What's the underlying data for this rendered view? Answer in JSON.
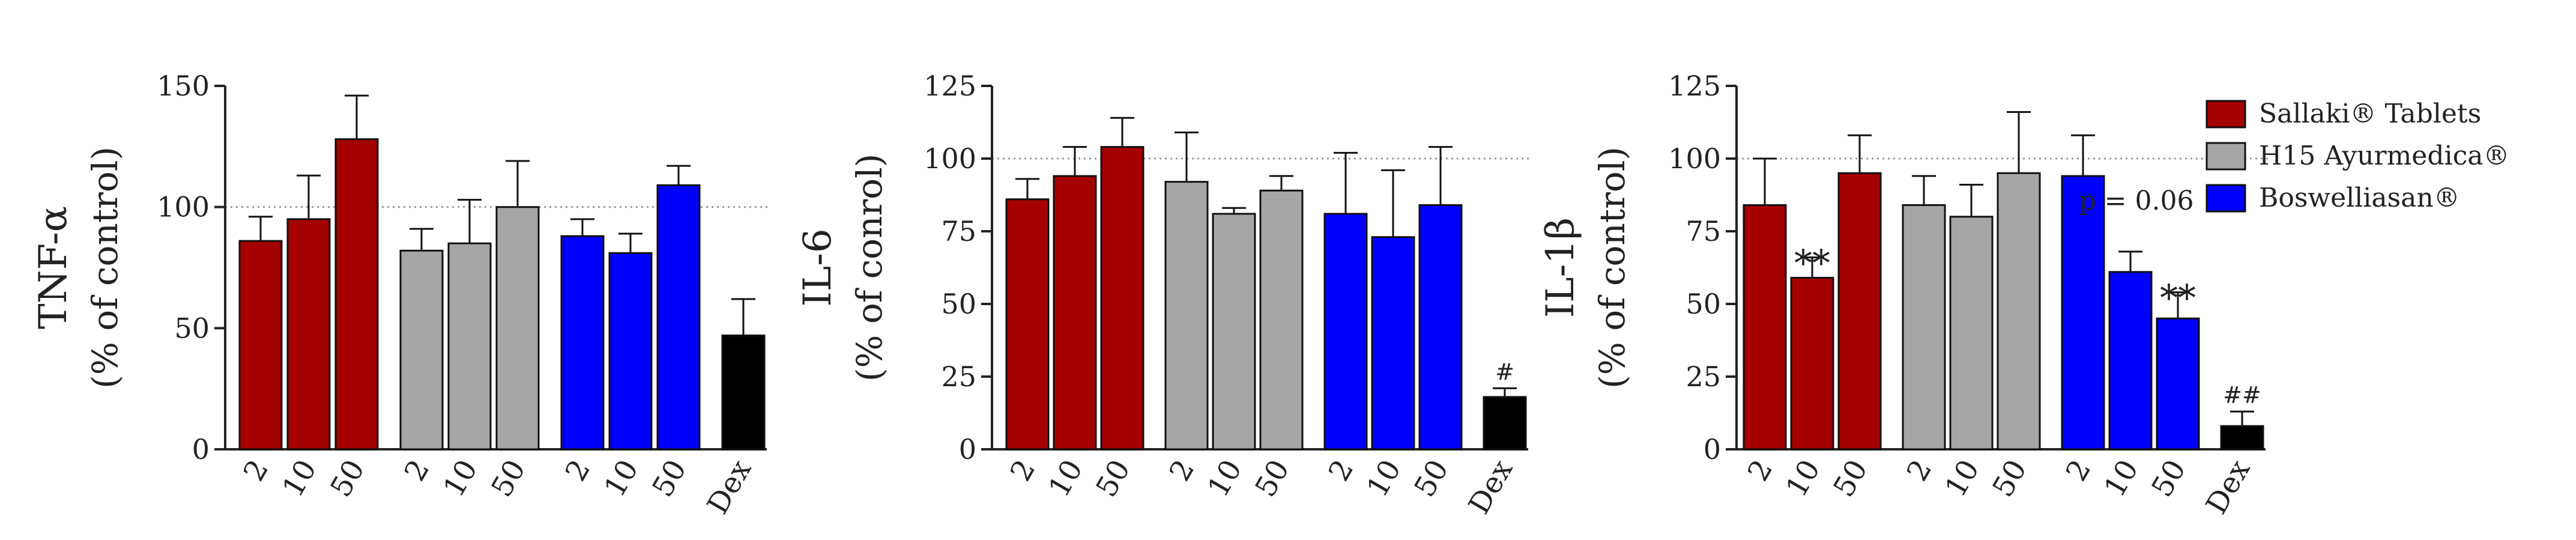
{
  "colors": {
    "sallaki": "#a50000",
    "h15": "#a6a6a6",
    "boswelliasan": "#0000ff",
    "dex": "#000000",
    "reference_line": "#999999"
  },
  "legend": [
    {
      "label": "Sallaki® Tablets",
      "color": "#a50000"
    },
    {
      "label": "H15 Ayurmedica®",
      "color": "#a6a6a6"
    },
    {
      "label": "Boswelliasan®",
      "color": "#0000ff"
    }
  ],
  "chart_data": [
    {
      "type": "bar",
      "ylabel": "TNF-α",
      "ylabel_sub": "(% of control)",
      "ylim": [
        0,
        150
      ],
      "yticks": [
        0,
        50,
        100,
        150
      ],
      "reference_line": 100,
      "categories": [
        "2",
        "10",
        "50",
        "2",
        "10",
        "50",
        "2",
        "10",
        "50",
        "Dex"
      ],
      "groups": [
        "Sallaki® Tablets",
        "Sallaki® Tablets",
        "Sallaki® Tablets",
        "H15 Ayurmedica®",
        "H15 Ayurmedica®",
        "H15 Ayurmedica®",
        "Boswelliasan®",
        "Boswelliasan®",
        "Boswelliasan®",
        "Dex"
      ],
      "values": [
        86,
        95,
        128,
        82,
        85,
        100,
        88,
        81,
        109,
        47
      ],
      "errors": [
        10,
        18,
        18,
        9,
        18,
        19,
        7,
        8,
        8,
        15
      ],
      "annotations": []
    },
    {
      "type": "bar",
      "ylabel": "IL-6",
      "ylabel_sub": "(% of conrol)",
      "ylim": [
        0,
        125
      ],
      "yticks": [
        0,
        25,
        50,
        75,
        100,
        125
      ],
      "reference_line": 100,
      "categories": [
        "2",
        "10",
        "50",
        "2",
        "10",
        "50",
        "2",
        "10",
        "50",
        "Dex"
      ],
      "groups": [
        "Sallaki® Tablets",
        "Sallaki® Tablets",
        "Sallaki® Tablets",
        "H15 Ayurmedica®",
        "H15 Ayurmedica®",
        "H15 Ayurmedica®",
        "Boswelliasan®",
        "Boswelliasan®",
        "Boswelliasan®",
        "Dex"
      ],
      "values": [
        86,
        94,
        104,
        92,
        81,
        89,
        81,
        73,
        84,
        18
      ],
      "errors": [
        7,
        10,
        10,
        17,
        2,
        5,
        21,
        23,
        20,
        3
      ],
      "annotations": [
        {
          "index": 9,
          "text": "#",
          "size": "small"
        }
      ]
    },
    {
      "type": "bar",
      "ylabel": "IL-1β",
      "ylabel_sub": "(% of control)",
      "ylim": [
        0,
        125
      ],
      "yticks": [
        0,
        25,
        50,
        75,
        100,
        125
      ],
      "reference_line": 100,
      "categories": [
        "2",
        "10",
        "50",
        "2",
        "10",
        "50",
        "2",
        "10",
        "50",
        "Dex"
      ],
      "groups": [
        "Sallaki® Tablets",
        "Sallaki® Tablets",
        "Sallaki® Tablets",
        "H15 Ayurmedica®",
        "H15 Ayurmedica®",
        "H15 Ayurmedica®",
        "Boswelliasan®",
        "Boswelliasan®",
        "Boswelliasan®",
        "Dex"
      ],
      "values": [
        84,
        59,
        95,
        84,
        80,
        95,
        94,
        61,
        45,
        8
      ],
      "errors": [
        16,
        7,
        13,
        10,
        11,
        21,
        14,
        7,
        9,
        5
      ],
      "annotations": [
        {
          "index": 1,
          "text": "**",
          "size": "large"
        },
        {
          "index": 7,
          "text": "p = 0.06",
          "size": "pval"
        },
        {
          "index": 8,
          "text": "**",
          "size": "large"
        },
        {
          "index": 9,
          "text": "##",
          "size": "small"
        }
      ]
    }
  ]
}
